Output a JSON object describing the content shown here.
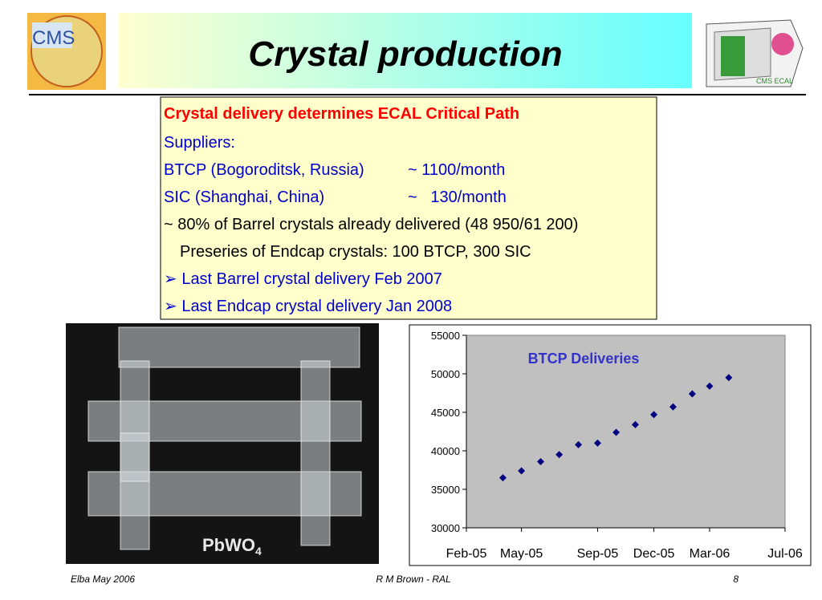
{
  "header": {
    "title": "Crystal production",
    "logo_left": "CMS",
    "logo_right": "CMS ECAL"
  },
  "textbox": {
    "heading": "Crystal delivery determines ECAL Critical Path",
    "suppliers_label": "Suppliers:",
    "suppliers": [
      [
        "BTCP (Bogoroditsk, Russia)",
        "~ 1100/month"
      ],
      [
        "SIC (Shanghai, China)",
        "~   130/month"
      ]
    ],
    "status": "~ 80% of Barrel crystals already delivered (48 950/61 200)",
    "preseries": "Preseries of Endcap crystals: 100 BTCP, 300 SIC",
    "bullets": [
      "➢ Last Barrel crystal delivery Feb 2007",
      "➢ Last Endcap crystal delivery Jan 2008"
    ]
  },
  "photo": {
    "label": "PbWO",
    "subscript": "4"
  },
  "chart_data": {
    "type": "scatter",
    "title": "BTCP Deliveries",
    "x": [
      "2005-04",
      "2005-05",
      "2005-06",
      "2005-07",
      "2005-08",
      "2005-09",
      "2005-10",
      "2005-11",
      "2005-12",
      "2006-01",
      "2006-02",
      "2006-03",
      "2006-04"
    ],
    "series": [
      {
        "name": "BTCP",
        "color": "#000080",
        "values": [
          36500,
          37400,
          38600,
          39500,
          40800,
          41000,
          42400,
          43400,
          44700,
          45700,
          47400,
          48400,
          49500
        ]
      }
    ],
    "xlim": [
      "2005-02",
      "2006-07"
    ],
    "xticks": [
      {
        "value": "2005-02",
        "label": "Feb-05"
      },
      {
        "value": "2005-05",
        "label": "May-05"
      },
      {
        "value": "2005-09",
        "label": "Sep-05"
      },
      {
        "value": "2005-12",
        "label": "Dec-05"
      },
      {
        "value": "2006-03",
        "label": "Mar-06"
      },
      {
        "value": "2006-07",
        "label": "Jul-06"
      }
    ],
    "ylim": [
      30000,
      55000
    ],
    "yticks": [
      30000,
      35000,
      40000,
      45000,
      50000,
      55000
    ],
    "grid": false,
    "plot_color": "#c0c0c0"
  },
  "footer": {
    "left": "Elba May 2006",
    "center": "R M Brown - RAL",
    "right": "8"
  }
}
